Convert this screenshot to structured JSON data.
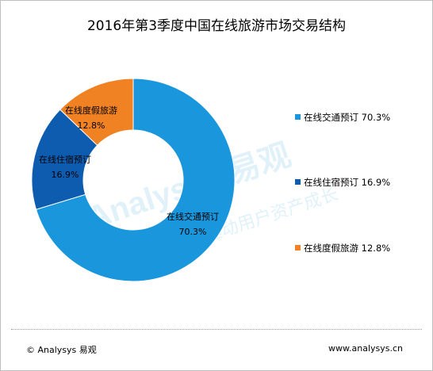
{
  "chart_data": {
    "type": "donut",
    "title": "2016年第3季度中国在线旅游市场交易结构",
    "categories": [
      "在线交通预订",
      "在线住宿预订",
      "在线度假旅游"
    ],
    "values": [
      70.3,
      16.9,
      12.8
    ],
    "value_labels": [
      "70.3%",
      "16.9%",
      "12.8%"
    ],
    "colors": [
      "#1a96dd",
      "#0d5cb0",
      "#f08223"
    ],
    "legend_placement": "right",
    "legend": [
      "在线交通预订 70.3%",
      "在线住宿预订 16.9%",
      "在线度假旅游 12.8%"
    ]
  },
  "footer": {
    "copyright": "© Analysys 易观",
    "website": "www.analysys.cn"
  },
  "watermark": {
    "brand": "Analysys 易观",
    "slogan": "实时分析驱动用户资产成长"
  }
}
